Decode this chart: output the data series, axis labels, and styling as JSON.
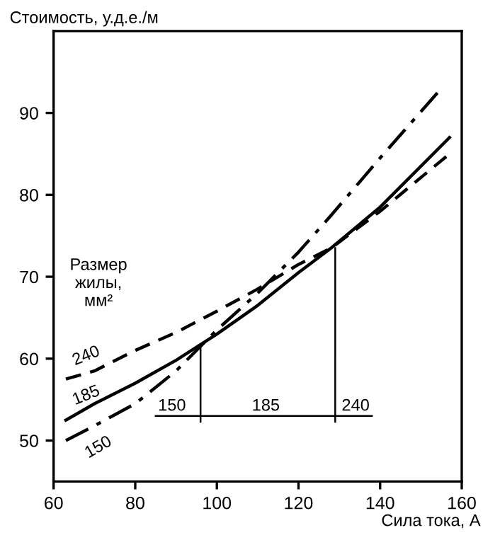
{
  "chart_data": {
    "type": "line",
    "xlabel": "Сила тока, А",
    "ylabel": "Стоимость, у.д.е./м",
    "xlim": [
      60,
      160
    ],
    "ylim": [
      45,
      100
    ],
    "xticks": [
      60,
      80,
      100,
      120,
      140,
      160
    ],
    "yticks": [
      50,
      60,
      70,
      80,
      90
    ],
    "grid": false,
    "series": [
      {
        "color": "#000000",
        "line_style": "dashdot",
        "x": [
          63,
          70,
          80,
          90,
          100,
          110,
          120,
          128,
          140,
          155
        ],
        "values": [
          50,
          51.8,
          54.5,
          58.5,
          63.5,
          68,
          73,
          77.5,
          84.5,
          93
        ]
      },
      {
        "color": "#000000",
        "line_style": "solid",
        "x": [
          63,
          70,
          80,
          90,
          100,
          110,
          120,
          128,
          140,
          157
        ],
        "values": [
          52.5,
          54.5,
          57,
          59.8,
          63,
          66.5,
          70.5,
          73.5,
          78.5,
          87
        ]
      },
      {
        "color": "#000000",
        "line_style": "dashed",
        "x": [
          63,
          70,
          80,
          90,
          100,
          110,
          120,
          128,
          140,
          157
        ],
        "values": [
          57.5,
          58.5,
          61,
          63.2,
          65.8,
          68.5,
          71.5,
          73.5,
          78,
          85
        ]
      },
      {
        "color": "#000000",
        "line_style": "solid",
        "x": [
          96,
          96
        ],
        "values": [
          52.3,
          61.3
        ]
      },
      {
        "color": "#000000",
        "line_style": "solid",
        "x": [
          129,
          129
        ],
        "values": [
          52.3,
          73.5
        ]
      },
      {
        "color": "#000000",
        "line_style": "solid",
        "x": [
          85,
          138
        ],
        "values": [
          53,
          53
        ]
      }
    ],
    "annotations": [
      "Размер\nжилы,\nмм²",
      "240",
      "185",
      "150",
      "150",
      "185",
      "240"
    ]
  }
}
